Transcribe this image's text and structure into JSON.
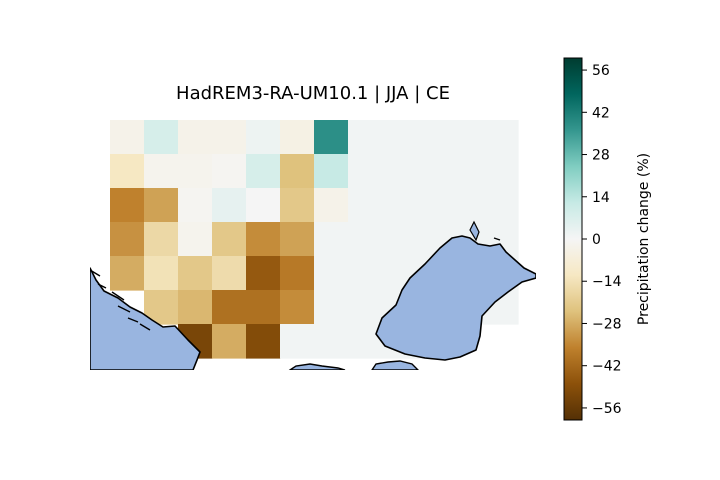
{
  "chart_data": {
    "type": "heatmap",
    "title": "HadREM3-RA-UM10.1 | JJA | CE",
    "colorbar": {
      "label": "Precipitation change (%)",
      "range": [
        -60,
        60
      ],
      "ticks": [
        "56",
        "42",
        "28",
        "14",
        "0",
        "−14",
        "−28",
        "−42",
        "−56"
      ],
      "tick_values": [
        56,
        42,
        28,
        14,
        0,
        -14,
        -28,
        -42,
        -56
      ],
      "colors": [
        "#543005",
        "#8c510a",
        "#bf812d",
        "#dfc27d",
        "#f6e8c3",
        "#f5f5f5",
        "#c7eae5",
        "#80cdc1",
        "#35978f",
        "#01665e",
        "#003c30"
      ]
    },
    "grid": {
      "rows": 7,
      "cols": 12,
      "values": [
        [
          -3,
          8,
          -3,
          -3,
          2,
          -4,
          38,
          1,
          1,
          1,
          1,
          1
        ],
        [
          -12,
          -2,
          -2,
          -1,
          8,
          -24,
          12,
          1,
          1,
          1,
          1,
          1
        ],
        [
          -36,
          -30,
          -1,
          4,
          0,
          -22,
          -3,
          1,
          1,
          1,
          1,
          1
        ],
        [
          -33,
          -17,
          -2,
          -22,
          -34,
          -30,
          1,
          1,
          1,
          1,
          1,
          1
        ],
        [
          -28,
          -14,
          -22,
          -16,
          -46,
          -38,
          1,
          1,
          1,
          1,
          1,
          1
        ],
        [
          null,
          -22,
          -26,
          -40,
          -40,
          -34,
          1,
          1,
          1,
          1,
          1,
          1
        ],
        [
          null,
          null,
          -52,
          -28,
          -50,
          1,
          1,
          1,
          1,
          1,
          null,
          null
        ]
      ]
    },
    "land_color": "#ffffff",
    "water_color": "#99b5e0"
  }
}
